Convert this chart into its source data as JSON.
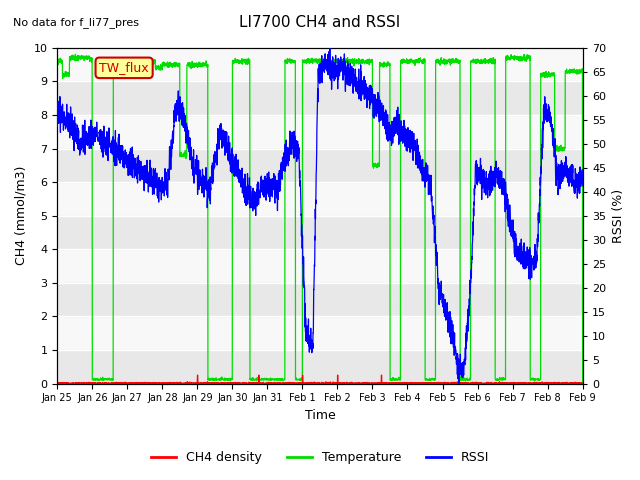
{
  "title": "LI7700 CH4 and RSSI",
  "subtitle": "No data for f_li77_pres",
  "annotation": "TW_flux",
  "xlabel": "Time",
  "ylabel_left": "CH4 (mmol/m3)",
  "ylabel_right": "RSSI (%)",
  "ylim_left": [
    0.0,
    10.0
  ],
  "ylim_right": [
    0,
    70
  ],
  "yticks_left": [
    0.0,
    1.0,
    2.0,
    3.0,
    4.0,
    5.0,
    6.0,
    7.0,
    8.0,
    9.0,
    10.0
  ],
  "yticks_right": [
    0,
    5,
    10,
    15,
    20,
    25,
    30,
    35,
    40,
    45,
    50,
    55,
    60,
    65,
    70
  ],
  "xtick_labels": [
    "Jan 25",
    "Jan 26",
    "Jan 27",
    "Jan 28",
    "Jan 29",
    "Jan 30",
    "Jan 31",
    "Feb 1",
    "Feb 2",
    "Feb 3",
    "Feb 4",
    "Feb 5",
    "Feb 6",
    "Feb 7",
    "Feb 8",
    "Feb 9"
  ],
  "color_ch4": "#ff0000",
  "color_temp": "#00dd00",
  "color_rssi": "#0000ff",
  "color_bg_band1": "#e8e8e8",
  "color_bg_band2": "#f8f8f8",
  "legend_labels": [
    "CH4 density",
    "Temperature",
    "RSSI"
  ],
  "annotation_color": "#cc0000",
  "annotation_bg": "#ffff99"
}
